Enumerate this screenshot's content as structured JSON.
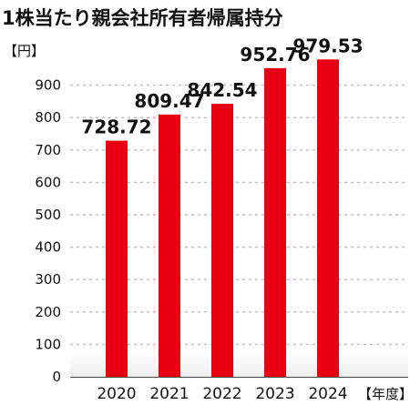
{
  "chart_data": {
    "type": "bar",
    "title": "1株当たり親会社所有者帰属持分",
    "y_unit_label": "【円】",
    "x_unit_label": "【年度】",
    "categories": [
      "2020",
      "2021",
      "2022",
      "2023",
      "2024"
    ],
    "values": [
      728.72,
      809.47,
      842.54,
      952.76,
      979.53
    ],
    "value_labels": [
      "728.72",
      "809.47",
      "842.54",
      "952.76",
      "979.53"
    ],
    "y_ticks": [
      0,
      100,
      200,
      300,
      400,
      500,
      600,
      700,
      800,
      900
    ],
    "ylim": [
      0,
      1000
    ],
    "grid": true,
    "bar_color": "#e60012",
    "floor_color": "#ececec"
  }
}
